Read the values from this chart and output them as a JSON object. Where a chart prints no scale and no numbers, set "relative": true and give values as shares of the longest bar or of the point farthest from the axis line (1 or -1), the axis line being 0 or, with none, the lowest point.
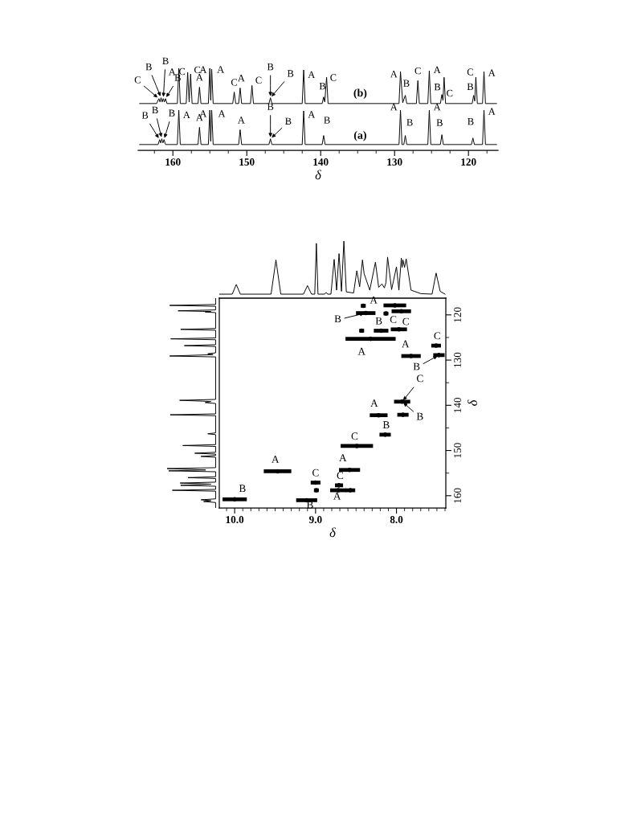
{
  "chart_data": [
    {
      "type": "line",
      "relative": true,
      "xlabel": "δ",
      "xlim": [
        164.7,
        116.0
      ],
      "xticks": [
        {
          "value": 162.5,
          "label": null
        },
        160,
        {
          "value": 157.5,
          "label": null
        },
        {
          "value": 155,
          "label": null
        },
        {
          "value": 152.5,
          "label": null
        },
        150,
        {
          "value": 147.5,
          "label": null
        },
        {
          "value": 145,
          "label": null
        },
        {
          "value": 142.5,
          "label": null
        },
        140,
        {
          "value": 137.5,
          "label": null
        },
        {
          "value": 135,
          "label": null
        },
        {
          "value": 132.5,
          "label": null
        },
        130,
        {
          "value": 127.5,
          "label": null
        },
        {
          "value": 125,
          "label": null
        },
        {
          "value": 122.5,
          "label": null
        },
        120,
        {
          "value": 117.5,
          "label": null
        }
      ],
      "series": [
        {
          "name": "(b)",
          "color": "#000000",
          "x": [
            164.5,
            162.2,
            161.9,
            161.75,
            161.6,
            161.45,
            161.3,
            161.15,
            161.0,
            160.8,
            159.4,
            159.2,
            159.0,
            158.2,
            158.0,
            157.8,
            157.6,
            157.4,
            156.6,
            156.4,
            156.2,
            155.2,
            155.0,
            154.88,
            154.75,
            154.55,
            151.9,
            151.7,
            151.5,
            151.1,
            150.9,
            150.7,
            149.5,
            149.3,
            149.1,
            147.0,
            146.8,
            146.6,
            142.5,
            142.3,
            142.1,
            139.8,
            139.6,
            139.45,
            139.2,
            139.0,
            129.4,
            129.2,
            128.9,
            128.55,
            128.35,
            127.05,
            126.85,
            126.65,
            125.5,
            125.3,
            125.1,
            123.8,
            123.6,
            123.45,
            123.3,
            123.1,
            119.5,
            119.3,
            119.15,
            119.0,
            118.8,
            118.1,
            117.9,
            117.7,
            116.2
          ],
          "values": [
            0.57,
            0.57,
            0.63,
            0.59,
            0.64,
            0.59,
            0.63,
            0.59,
            0.63,
            0.57,
            0.57,
            1.0,
            0.57,
            0.57,
            0.95,
            0.59,
            0.93,
            0.57,
            0.57,
            0.77,
            0.57,
            0.57,
            1.0,
            0.61,
            0.99,
            0.57,
            0.57,
            0.71,
            0.57,
            0.57,
            0.76,
            0.57,
            0.57,
            0.79,
            0.57,
            0.57,
            0.64,
            0.57,
            0.57,
            0.98,
            0.57,
            0.57,
            0.65,
            0.59,
            0.89,
            0.57,
            0.57,
            0.96,
            0.58,
            0.67,
            0.57,
            0.57,
            0.85,
            0.57,
            0.57,
            0.97,
            0.57,
            0.57,
            0.68,
            0.61,
            0.89,
            0.57,
            0.57,
            0.67,
            0.6,
            0.89,
            0.57,
            0.57,
            0.96,
            0.57,
            0.57
          ]
        },
        {
          "name": "(a)",
          "color": "#000000",
          "x": [
            164.5,
            162.0,
            161.8,
            161.65,
            161.5,
            161.35,
            161.2,
            161.0,
            159.4,
            159.2,
            159.0,
            156.6,
            156.4,
            156.2,
            155.2,
            155.0,
            154.88,
            154.75,
            154.55,
            151.1,
            150.9,
            150.7,
            147.0,
            146.8,
            146.6,
            142.5,
            142.3,
            142.1,
            139.8,
            139.6,
            139.4,
            129.4,
            129.2,
            129.0,
            128.75,
            128.55,
            128.35,
            125.5,
            125.3,
            125.1,
            123.8,
            123.6,
            123.4,
            119.6,
            119.4,
            119.2,
            118.1,
            117.9,
            117.7,
            116.2
          ],
          "values": [
            0.07,
            0.07,
            0.13,
            0.09,
            0.14,
            0.09,
            0.13,
            0.07,
            0.07,
            0.49,
            0.07,
            0.07,
            0.28,
            0.07,
            0.07,
            0.49,
            0.11,
            0.49,
            0.07,
            0.07,
            0.25,
            0.07,
            0.07,
            0.14,
            0.07,
            0.07,
            0.48,
            0.07,
            0.07,
            0.18,
            0.07,
            0.07,
            0.49,
            0.07,
            0.07,
            0.18,
            0.07,
            0.07,
            0.49,
            0.07,
            0.07,
            0.19,
            0.07,
            0.07,
            0.15,
            0.07,
            0.07,
            0.49,
            0.07,
            0.07
          ]
        }
      ],
      "annotations": [
        {
          "text": "C",
          "x": 161.9,
          "y": 0.63
        },
        {
          "text": "B",
          "x": 161.6,
          "y": 0.64
        },
        {
          "text": "B",
          "x": 161.3,
          "y": 0.63
        },
        {
          "text": "B",
          "x": 161.0,
          "y": 0.63
        },
        {
          "text": "A",
          "x": 159.2,
          "y": 1.0
        },
        {
          "text": "C",
          "x": 158.0,
          "y": 0.95
        },
        {
          "text": "C",
          "x": 157.6,
          "y": 0.93
        },
        {
          "text": "A",
          "x": 156.4,
          "y": 0.77
        },
        {
          "text": "A",
          "x": 155.0,
          "y": 1.0
        },
        {
          "text": "A",
          "x": 154.75,
          "y": 0.99
        },
        {
          "text": "C",
          "x": 151.7,
          "y": 0.71
        },
        {
          "text": "A",
          "x": 150.9,
          "y": 0.76
        },
        {
          "text": "C",
          "x": 149.3,
          "y": 0.79
        },
        {
          "text": "B",
          "x": 146.8,
          "y": 0.64
        },
        {
          "text": "B",
          "x": 146.8,
          "y": 0.64
        },
        {
          "text": "A",
          "x": 142.3,
          "y": 0.98
        },
        {
          "text": "B",
          "x": 139.6,
          "y": 0.65
        },
        {
          "text": "C",
          "x": 139.2,
          "y": 0.89
        },
        {
          "text": "A",
          "x": 129.2,
          "y": 0.96
        },
        {
          "text": "B",
          "x": 128.55,
          "y": 0.67
        },
        {
          "text": "C",
          "x": 126.85,
          "y": 0.85
        },
        {
          "text": "A",
          "x": 125.3,
          "y": 0.97
        },
        {
          "text": "B",
          "x": 123.6,
          "y": 0.68
        },
        {
          "text": "C",
          "x": 123.3,
          "y": 0.89
        },
        {
          "text": "C",
          "x": 119.0,
          "y": 0.89
        },
        {
          "text": "B",
          "x": 119.3,
          "y": 0.67
        },
        {
          "text": "A",
          "x": 117.9,
          "y": 0.96
        },
        {
          "text": "B",
          "x": 161.8,
          "y": 0.13
        },
        {
          "text": "B",
          "x": 161.5,
          "y": 0.14
        },
        {
          "text": "B",
          "x": 161.2,
          "y": 0.13
        },
        {
          "text": "A",
          "x": 159.2,
          "y": 0.49
        },
        {
          "text": "A",
          "x": 156.4,
          "y": 0.28
        },
        {
          "text": "A",
          "x": 155.0,
          "y": 0.49
        },
        {
          "text": "A",
          "x": 154.75,
          "y": 0.49
        },
        {
          "text": "A",
          "x": 150.9,
          "y": 0.25
        },
        {
          "text": "B",
          "x": 146.8,
          "y": 0.14
        },
        {
          "text": "B",
          "x": 146.8,
          "y": 0.14
        },
        {
          "text": "A",
          "x": 142.3,
          "y": 0.48
        },
        {
          "text": "B",
          "x": 139.6,
          "y": 0.18
        },
        {
          "text": "A",
          "x": 129.2,
          "y": 0.49
        },
        {
          "text": "B",
          "x": 128.55,
          "y": 0.18
        },
        {
          "text": "A",
          "x": 125.3,
          "y": 0.49
        },
        {
          "text": "B",
          "x": 123.6,
          "y": 0.19
        },
        {
          "text": "B",
          "x": 119.4,
          "y": 0.15
        },
        {
          "text": "A",
          "x": 117.9,
          "y": 0.49
        }
      ]
    },
    {
      "type": "line",
      "relative": true,
      "color": "#000000",
      "xlim": [
        10.19,
        7.39
      ],
      "tick_labels": false,
      "x": [
        10.19,
        10.03,
        9.98,
        9.93,
        9.55,
        9.49,
        9.43,
        9.15,
        9.1,
        9.05,
        9.01,
        8.99,
        8.97,
        8.89,
        8.87,
        8.85,
        8.81,
        8.77,
        8.74,
        8.71,
        8.68,
        8.65,
        8.62,
        8.53,
        8.49,
        8.455,
        8.42,
        8.4,
        8.33,
        8.26,
        8.22,
        8.18,
        8.15,
        8.13,
        8.11,
        8.06,
        8.0,
        7.97,
        7.94,
        7.93,
        7.92,
        7.9,
        7.88,
        7.82,
        7.7,
        7.56,
        7.51,
        7.46,
        7.4
      ],
      "values": [
        0.07,
        0.07,
        0.24,
        0.07,
        0.07,
        0.67,
        0.07,
        0.07,
        0.22,
        0.07,
        0.07,
        0.96,
        0.07,
        0.07,
        0.1,
        0.07,
        0.07,
        0.68,
        0.14,
        0.78,
        0.12,
        1.0,
        0.11,
        0.09,
        0.48,
        0.2,
        0.67,
        0.43,
        0.14,
        0.63,
        0.19,
        0.25,
        0.18,
        0.27,
        0.72,
        0.15,
        0.55,
        0.14,
        0.7,
        0.54,
        0.67,
        0.54,
        0.69,
        0.14,
        0.08,
        0.07,
        0.44,
        0.12,
        0.07
      ]
    },
    {
      "type": "line",
      "relative": true,
      "orientation": "horizontal",
      "color": "#000000",
      "ylim": [
        162.7,
        116.3
      ],
      "tick_labels": false,
      "x": [
        116.3,
        117.7,
        117.9,
        118.1,
        118.9,
        119.1,
        119.25,
        119.35,
        119.5,
        123.0,
        123.2,
        123.4,
        125.1,
        125.3,
        125.5,
        126.6,
        126.8,
        127.0,
        128.4,
        128.6,
        128.8,
        129.1,
        129.3,
        138.7,
        138.9,
        139.15,
        139.4,
        139.6,
        141.9,
        142.1,
        142.3,
        146.1,
        146.3,
        146.5,
        148.7,
        148.9,
        149.1,
        150.4,
        150.6,
        150.8,
        151.1,
        151.3,
        151.5,
        153.8,
        154.0,
        154.3,
        154.5,
        154.7,
        155.8,
        156.0,
        156.2,
        157.0,
        157.2,
        157.45,
        157.7,
        157.9,
        158.6,
        158.8,
        159.0,
        160.7,
        160.9,
        161.1,
        161.3,
        161.5,
        162.7
      ],
      "values": [
        -0.07,
        -0.07,
        -0.95,
        -0.07,
        -0.07,
        -0.79,
        -0.16,
        -0.27,
        -0.07,
        -0.07,
        -0.74,
        -0.07,
        -0.07,
        -0.93,
        -0.07,
        -0.07,
        -0.67,
        -0.07,
        -0.07,
        -0.22,
        -0.12,
        -0.95,
        -0.07,
        -0.07,
        -0.76,
        -0.16,
        -0.27,
        -0.07,
        -0.07,
        -0.94,
        -0.07,
        -0.07,
        -0.22,
        -0.07,
        -0.07,
        -0.7,
        -0.07,
        -0.07,
        -0.47,
        -0.07,
        -0.07,
        -0.35,
        -0.07,
        -0.07,
        -1.0,
        -0.26,
        -0.97,
        -0.07,
        -0.07,
        -0.6,
        -0.07,
        -0.07,
        -0.75,
        -0.16,
        -0.74,
        -0.07,
        -0.07,
        -0.9,
        -0.07,
        -0.07,
        -0.35,
        -0.16,
        -0.3,
        -0.07,
        -0.07
      ]
    },
    {
      "type": "scatter",
      "xlabel": "δ",
      "ylabel": "δ",
      "marker": "circle",
      "xlim": [
        10.19,
        7.39
      ],
      "ylim": [
        162.7,
        116.3
      ],
      "xticks": [
        {
          "value": 10.1,
          "label": null
        },
        {
          "value": 10.0,
          "label": "10.0"
        },
        {
          "value": 9.9,
          "label": null
        },
        {
          "value": 9.8,
          "label": null
        },
        {
          "value": 9.7,
          "label": null
        },
        {
          "value": 9.6,
          "label": null
        },
        {
          "value": 9.5,
          "label": null
        },
        {
          "value": 9.4,
          "label": null
        },
        {
          "value": 9.3,
          "label": null
        },
        {
          "value": 9.2,
          "label": null
        },
        {
          "value": 9.1,
          "label": null
        },
        {
          "value": 9.0,
          "label": "9.0"
        },
        {
          "value": 8.9,
          "label": null
        },
        {
          "value": 8.8,
          "label": null
        },
        {
          "value": 8.7,
          "label": null
        },
        {
          "value": 8.6,
          "label": null
        },
        {
          "value": 8.5,
          "label": null
        },
        {
          "value": 8.4,
          "label": null
        },
        {
          "value": 8.3,
          "label": null
        },
        {
          "value": 8.2,
          "label": null
        },
        {
          "value": 8.1,
          "label": null
        },
        {
          "value": 8.0,
          "label": "8.0"
        },
        {
          "value": 7.9,
          "label": null
        },
        {
          "value": 7.8,
          "label": null
        },
        {
          "value": 7.7,
          "label": null
        },
        {
          "value": 7.6,
          "label": null
        },
        {
          "value": 7.5,
          "label": null
        },
        {
          "value": 7.4,
          "label": null
        }
      ],
      "yticks": [
        120,
        {
          "value": 125,
          "label": null
        },
        130,
        {
          "value": 135,
          "label": null
        },
        140,
        {
          "value": 145,
          "label": null
        },
        150,
        {
          "value": 155,
          "label": null
        },
        160
      ],
      "series": [
        {
          "color": "#000000",
          "x": [
            8.41,
            8.02,
            8.38,
            8.13,
            7.94,
            8.43,
            8.19,
            7.97,
            8.32,
            7.51,
            7.82,
            7.475,
            7.93,
            8.22,
            7.92,
            8.14,
            8.49,
            9.47,
            8.58,
            9.0,
            8.71,
            8.99,
            8.72,
            8.57,
            9.11,
            10.0
          ],
          "values": [
            118.0,
            117.9,
            119.6,
            119.7,
            119.2,
            123.5,
            123.5,
            123.2,
            125.3,
            126.8,
            129.1,
            128.9,
            139.2,
            142.2,
            142.1,
            146.5,
            149.0,
            154.6,
            154.3,
            157.1,
            157.7,
            158.8,
            158.8,
            158.8,
            161.0,
            160.8
          ],
          "xerrors": [
            0.03,
            0.14,
            0.12,
            0.03,
            0.12,
            0.03,
            0.09,
            0.1,
            0.31,
            0.06,
            0.12,
            0.07,
            0.1,
            0.11,
            0.07,
            0.07,
            0.2,
            0.17,
            0.13,
            0.06,
            0.05,
            0.03,
            0.1,
            0.06,
            0.13,
            0.15
          ]
        }
      ],
      "annotations": [
        {
          "text": "A",
          "x": 8.02,
          "y": 117.9
        },
        {
          "text": "B",
          "x": 8.38,
          "y": 119.6
        },
        {
          "text": "C",
          "x": 7.94,
          "y": 119.2
        },
        {
          "text": "B",
          "x": 8.19,
          "y": 123.5
        },
        {
          "text": "C",
          "x": 7.97,
          "y": 123.2
        },
        {
          "text": "A",
          "x": 8.32,
          "y": 125.3
        },
        {
          "text": "C",
          "x": 7.51,
          "y": 126.8
        },
        {
          "text": "A",
          "x": 7.82,
          "y": 129.1
        },
        {
          "text": "B",
          "x": 7.475,
          "y": 128.9
        },
        {
          "text": "C",
          "x": 7.93,
          "y": 139.2
        },
        {
          "text": "B",
          "x": 7.93,
          "y": 139.2
        },
        {
          "text": "A",
          "x": 8.22,
          "y": 142.2
        },
        {
          "text": "B",
          "x": 8.14,
          "y": 146.5
        },
        {
          "text": "C",
          "x": 8.49,
          "y": 149.0
        },
        {
          "text": "A",
          "x": 9.47,
          "y": 154.6
        },
        {
          "text": "A",
          "x": 8.58,
          "y": 154.3
        },
        {
          "text": "C",
          "x": 9.0,
          "y": 157.1
        },
        {
          "text": "C",
          "x": 8.71,
          "y": 157.7
        },
        {
          "text": "A",
          "x": 8.72,
          "y": 158.8
        },
        {
          "text": "B",
          "x": 10.0,
          "y": 160.8
        },
        {
          "text": "B",
          "x": 9.11,
          "y": 161.0
        }
      ]
    }
  ]
}
